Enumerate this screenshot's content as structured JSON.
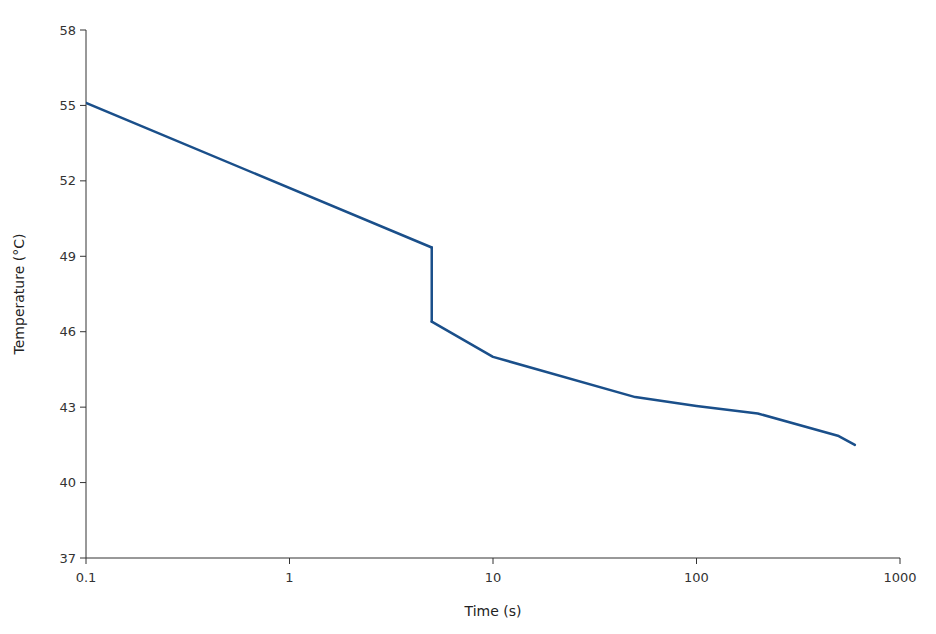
{
  "chart_data": {
    "type": "line",
    "x_label": "Time (s)",
    "y_label": "Temperature (°C)",
    "log": "x",
    "grid": false,
    "xlim": [
      0.1,
      1000
    ],
    "ylim": [
      37,
      58
    ],
    "xticks": [
      0.1,
      1,
      10,
      100,
      1000
    ],
    "yticks": [
      37,
      40,
      43,
      46,
      49,
      52,
      55,
      58
    ],
    "series": [
      {
        "color": "#1a4f8a",
        "x": [
          0.1,
          5.0
        ],
        "values": [
          55.1,
          49.35
        ]
      },
      {
        "color": "#1a4f8a",
        "x": [
          5.0,
          5.0
        ],
        "values": [
          49.35,
          46.4
        ]
      },
      {
        "color": "#1a4f8a",
        "x": [
          5.0,
          10.0,
          50.0,
          100.0,
          200.0,
          500.0,
          600.0
        ],
        "values": [
          46.4,
          45.0,
          43.4,
          43.05,
          42.75,
          41.85,
          41.5
        ]
      }
    ]
  }
}
